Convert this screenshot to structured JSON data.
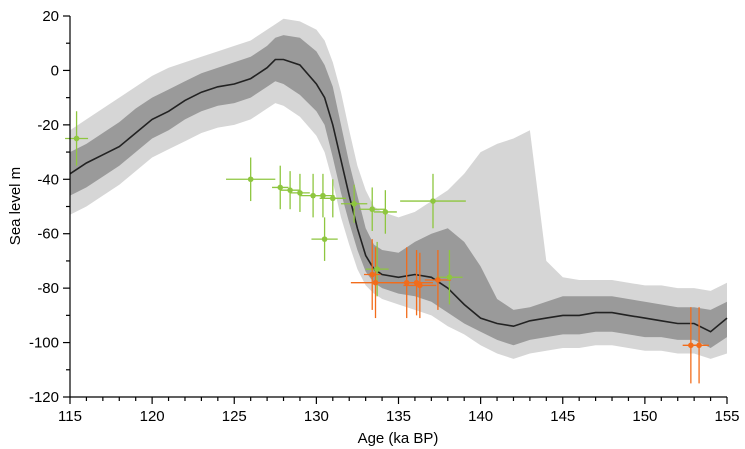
{
  "chart_data": {
    "type": "line",
    "title": "",
    "xlabel": "Age (ka BP)",
    "ylabel": "Sea level m",
    "xlim": [
      115,
      155
    ],
    "ylim": [
      -120,
      20
    ],
    "x_ticks": [
      115,
      120,
      125,
      130,
      135,
      140,
      145,
      150,
      155
    ],
    "y_ticks": [
      -120,
      -100,
      -80,
      -60,
      -40,
      -20,
      0,
      20
    ],
    "colors": {
      "mean_line": "#222222",
      "inner_band": "#9a9a9a",
      "outer_band": "#d6d6d6",
      "green_points": "#8ec63f",
      "orange_points": "#f26c1b"
    },
    "series": [
      {
        "x": [
          115,
          116,
          117,
          118,
          119,
          120,
          121,
          122,
          123,
          124,
          125,
          126,
          127,
          127.5,
          128,
          129,
          130,
          130.5,
          131,
          131.5,
          132,
          132.5,
          133,
          133.5,
          134,
          135,
          136,
          137,
          137.5,
          138,
          139,
          140,
          141,
          142,
          143,
          144,
          145,
          146,
          147,
          148,
          149,
          150,
          151,
          152,
          153,
          154,
          155
        ],
        "mean": [
          -38,
          -34,
          -31,
          -28,
          -23,
          -18,
          -15,
          -11,
          -8,
          -6,
          -5,
          -3,
          1,
          4,
          4,
          2,
          -5,
          -10,
          -20,
          -33,
          -46,
          -58,
          -68,
          -73,
          -75,
          -76,
          -75,
          -76,
          -78,
          -80,
          -86,
          -91,
          -93,
          -94,
          -92,
          -91,
          -90,
          -90,
          -89,
          -89,
          -90,
          -91,
          -92,
          -93,
          -93,
          -96,
          -91
        ],
        "inner_lo": [
          -46,
          -43,
          -39,
          -35,
          -30,
          -25,
          -22,
          -18,
          -15,
          -13,
          -12,
          -10,
          -6,
          -4,
          -5,
          -9,
          -15,
          -20,
          -32,
          -45,
          -56,
          -66,
          -74,
          -78,
          -80,
          -82,
          -83,
          -85,
          -87,
          -89,
          -93,
          -96,
          -99,
          -101,
          -99,
          -98,
          -97,
          -97,
          -96,
          -96,
          -97,
          -98,
          -98,
          -99,
          -99,
          -102,
          -98
        ],
        "inner_hi": [
          -30,
          -27,
          -23,
          -19,
          -14,
          -10,
          -7,
          -4,
          -1,
          1,
          3,
          5,
          9,
          12,
          13,
          12,
          7,
          2,
          -6,
          -20,
          -34,
          -46,
          -58,
          -64,
          -66,
          -67,
          -63,
          -60,
          -59,
          -58,
          -63,
          -72,
          -84,
          -88,
          -87,
          -85,
          -83,
          -83,
          -83,
          -83,
          -84,
          -85,
          -86,
          -87,
          -87,
          -88,
          -85
        ],
        "outer_lo": [
          -53,
          -50,
          -46,
          -42,
          -37,
          -32,
          -29,
          -26,
          -23,
          -21,
          -20,
          -18,
          -14,
          -12,
          -13,
          -17,
          -24,
          -30,
          -41,
          -54,
          -64,
          -73,
          -79,
          -82,
          -84,
          -86,
          -88,
          -90,
          -92,
          -94,
          -97,
          -101,
          -104,
          -106,
          -104,
          -103,
          -102,
          -102,
          -101,
          -101,
          -102,
          -103,
          -103,
          -104,
          -104,
          -106,
          -104
        ],
        "outer_hi": [
          -22,
          -18,
          -14,
          -10,
          -6,
          -2,
          1,
          3,
          5,
          7,
          9,
          11,
          15,
          17,
          19,
          18,
          15,
          11,
          3,
          -8,
          -22,
          -35,
          -44,
          -50,
          -52,
          -54,
          -52,
          -48,
          -46,
          -44,
          -38,
          -30,
          -27,
          -25,
          -22,
          -70,
          -76,
          -77,
          -77,
          -77,
          -78,
          -79,
          -79,
          -80,
          -80,
          -81,
          -78
        ]
      }
    ],
    "points_green": [
      {
        "x": 115.4,
        "y": -25,
        "xe": 0.7,
        "ye": 10
      },
      {
        "x": 126.0,
        "y": -40,
        "xe": 1.5,
        "ye": 8
      },
      {
        "x": 127.8,
        "y": -43,
        "xe": 0.5,
        "ye": 8
      },
      {
        "x": 128.4,
        "y": -44,
        "xe": 0.6,
        "ye": 7
      },
      {
        "x": 129.0,
        "y": -45,
        "xe": 0.6,
        "ye": 7
      },
      {
        "x": 129.8,
        "y": -46,
        "xe": 0.8,
        "ye": 8
      },
      {
        "x": 130.4,
        "y": -46,
        "xe": 0.7,
        "ye": 8
      },
      {
        "x": 130.5,
        "y": -62,
        "xe": 0.8,
        "ye": 8
      },
      {
        "x": 131.0,
        "y": -47,
        "xe": 0.8,
        "ye": 7
      },
      {
        "x": 132.3,
        "y": -49,
        "xe": 0.8,
        "ye": 7
      },
      {
        "x": 133.4,
        "y": -51,
        "xe": 0.8,
        "ye": 8
      },
      {
        "x": 133.7,
        "y": -73,
        "xe": 0.7,
        "ye": 10
      },
      {
        "x": 134.2,
        "y": -52,
        "xe": 0.7,
        "ye": 8
      },
      {
        "x": 137.1,
        "y": -48,
        "xe": 2.0,
        "ye": 10
      },
      {
        "x": 138.1,
        "y": -76,
        "xe": 0.8,
        "ye": 10
      }
    ],
    "points_orange": [
      {
        "x": 133.4,
        "y": -75,
        "xe": 0.5,
        "ye": 13
      },
      {
        "x": 133.6,
        "y": -78,
        "xe": 1.5,
        "ye": 13
      },
      {
        "x": 135.5,
        "y": -78,
        "xe": 1.0,
        "ye": 13
      },
      {
        "x": 136.1,
        "y": -78,
        "xe": 1.0,
        "ye": 12
      },
      {
        "x": 136.3,
        "y": -79,
        "xe": 1.0,
        "ye": 12
      },
      {
        "x": 137.4,
        "y": -77,
        "xe": 0.8,
        "ye": 11
      },
      {
        "x": 152.8,
        "y": -101,
        "xe": 0.5,
        "ye": 14
      },
      {
        "x": 153.3,
        "y": -101,
        "xe": 0.6,
        "ye": 14
      }
    ]
  }
}
